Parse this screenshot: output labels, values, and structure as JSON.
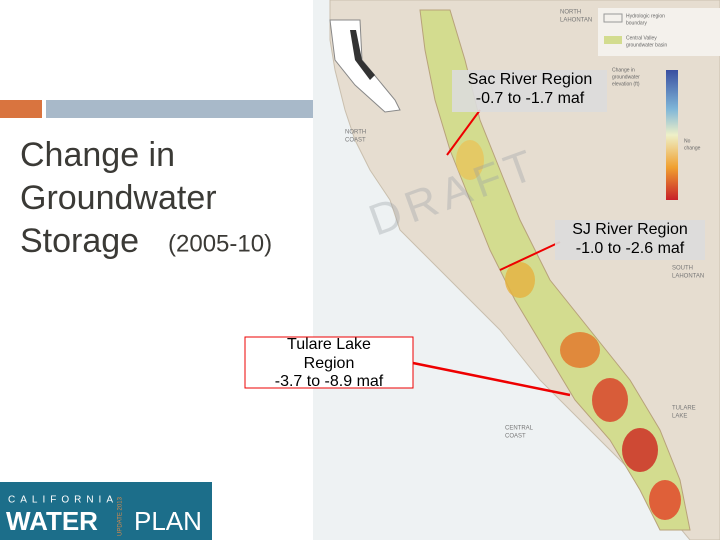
{
  "slide": {
    "title_lines": [
      "Change in",
      "Groundwater",
      "Storage"
    ],
    "period": "(2005-10)",
    "callouts": [
      {
        "lines": [
          "Sac River Region",
          "-0.7 to -1.7 maf"
        ]
      },
      {
        "lines": [
          "SJ River Region",
          "-1.0 to -2.6 maf"
        ]
      },
      {
        "lines": [
          "Tulare Lake",
          "Region",
          "-3.7 to -8.9 maf"
        ]
      }
    ],
    "map": {
      "watermark": "DRAFT",
      "region_labels": [
        [
          "NORTH",
          "LAHONTAN"
        ],
        [
          "NORTH",
          "COAST"
        ],
        [
          "SOUTH",
          "LAHONTAN"
        ],
        [
          "TULARE",
          "LAKE"
        ],
        [
          "CENTRAL",
          "COAST"
        ]
      ],
      "legend": {
        "boundary": [
          "Hydrologic region",
          "boundary"
        ],
        "basin": [
          "Central Valley",
          "groundwater basin"
        ],
        "scale_title": [
          "Change in",
          "groundwater",
          "elevation (ft)"
        ],
        "no_change": [
          "No",
          "change"
        ]
      }
    },
    "logo": {
      "top": "CALIFORNIA",
      "left": "WATER",
      "right": "PLAN",
      "side": "UPDATE 2013"
    }
  }
}
